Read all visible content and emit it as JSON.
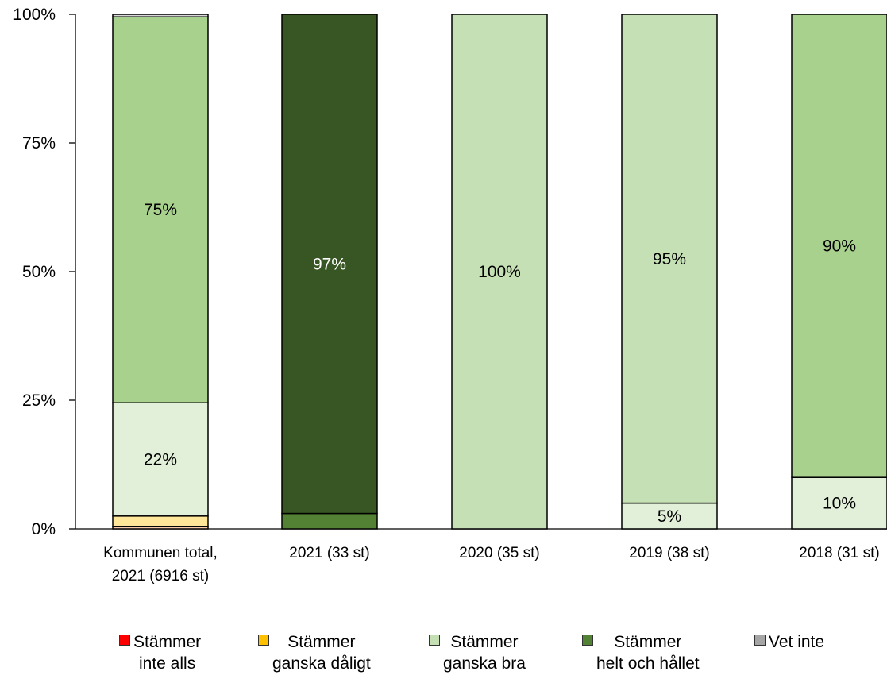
{
  "chart_data": {
    "type": "bar",
    "stacked": true,
    "percent": true,
    "categories": [
      [
        "Kommunen total,",
        "2021 (6916 st)"
      ],
      [
        "2021 (33 st)"
      ],
      [
        "2020 (35 st)"
      ],
      [
        "2019 (38 st)"
      ],
      [
        "2018 (31 st)"
      ]
    ],
    "yticks": [
      "0%",
      "25%",
      "50%",
      "75%",
      "100%"
    ],
    "ylim": [
      0,
      100
    ],
    "series": [
      {
        "name": [
          "Stämmer",
          "inte alls"
        ],
        "color": "#ff0000",
        "values": [
          0.5,
          0,
          0,
          0,
          0
        ],
        "labels": [
          "",
          "",
          "",
          "",
          ""
        ]
      },
      {
        "name": [
          "Stämmer",
          "ganska dåligt"
        ],
        "color": "#ffc000",
        "fill": "#ffe699",
        "values": [
          2,
          0,
          0,
          0,
          0
        ],
        "labels": [
          "",
          "",
          "",
          "",
          ""
        ]
      },
      {
        "name": [
          "Stämmer",
          "ganska bra"
        ],
        "color": "#c5e0b4",
        "fill": "#e2efd9",
        "values": [
          22,
          0,
          0,
          5,
          10
        ],
        "labels": [
          "22%",
          "",
          "",
          "5%",
          "10%"
        ]
      },
      {
        "name": [
          "Stämmer",
          "helt och hållet"
        ],
        "color": "#548235",
        "fill": "#a9d18e",
        "values": [
          75,
          3,
          100,
          95,
          90
        ],
        "labels": [
          "75%",
          "",
          "100%",
          "95%",
          "90%"
        ]
      },
      {
        "name": [
          "Vet inte"
        ],
        "color": "#a5a5a5",
        "values": [
          0.5,
          97,
          0,
          0,
          0
        ],
        "labels": [
          "",
          "97%",
          "",
          "",
          ""
        ]
      }
    ],
    "segment_fills": [
      [
        "#f8cbad",
        "#ffe699",
        "#e2efd9",
        "#a9d18e",
        "#d9d9d9"
      ],
      [
        "#548235",
        "#375623"
      ],
      [
        "#c5e0b4"
      ],
      [
        "#e2efd9",
        "#c5e0b4"
      ],
      [
        "#e2efd9",
        "#a9d18e"
      ]
    ],
    "bar_segments": [
      [
        0.5,
        2,
        22,
        75,
        0.5
      ],
      [
        3,
        97
      ],
      [
        100
      ],
      [
        5,
        95
      ],
      [
        10,
        90
      ]
    ],
    "bar_labels": [
      [
        "",
        "",
        "22%",
        "75%",
        ""
      ],
      [
        "",
        "97%"
      ],
      [
        "100%"
      ],
      [
        "5%",
        "95%"
      ],
      [
        "10%",
        "90%"
      ]
    ],
    "legend": [
      {
        "label": [
          "Stämmer",
          "inte alls"
        ],
        "color": "#ff0000"
      },
      {
        "label": [
          "Stämmer",
          "ganska dåligt"
        ],
        "color": "#ffc000"
      },
      {
        "label": [
          "Stämmer",
          "ganska bra"
        ],
        "color": "#c5e0b4"
      },
      {
        "label": [
          "Stämmer",
          "helt och hållet"
        ],
        "color": "#548235"
      },
      {
        "label": [
          "Vet inte"
        ],
        "color": "#a5a5a5"
      }
    ],
    "legend_position": "bottom"
  }
}
